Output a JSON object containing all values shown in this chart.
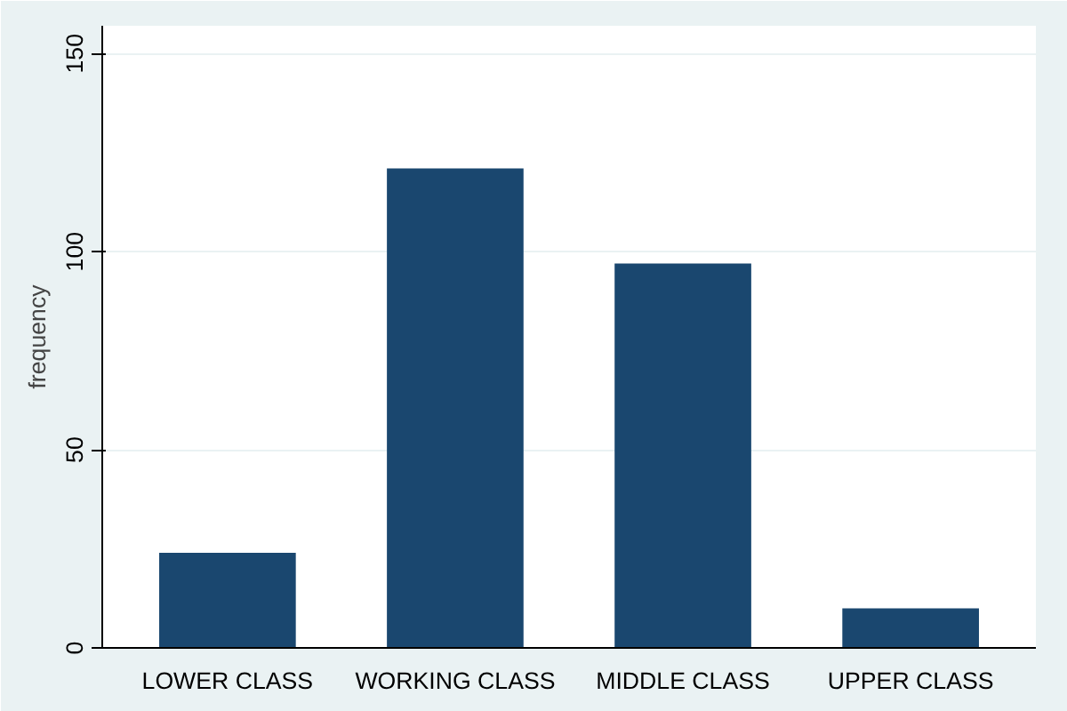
{
  "chart_data": {
    "type": "bar",
    "ylabel": "frequency",
    "categories": [
      "LOWER CLASS",
      "WORKING CLASS",
      "MIDDLE CLASS",
      "UPPER CLASS"
    ],
    "values": [
      24,
      121,
      97,
      10
    ],
    "color": "#1a476f",
    "ylim": [
      0,
      157
    ],
    "yticks": [
      0,
      50,
      100,
      150
    ],
    "grid": "y"
  }
}
